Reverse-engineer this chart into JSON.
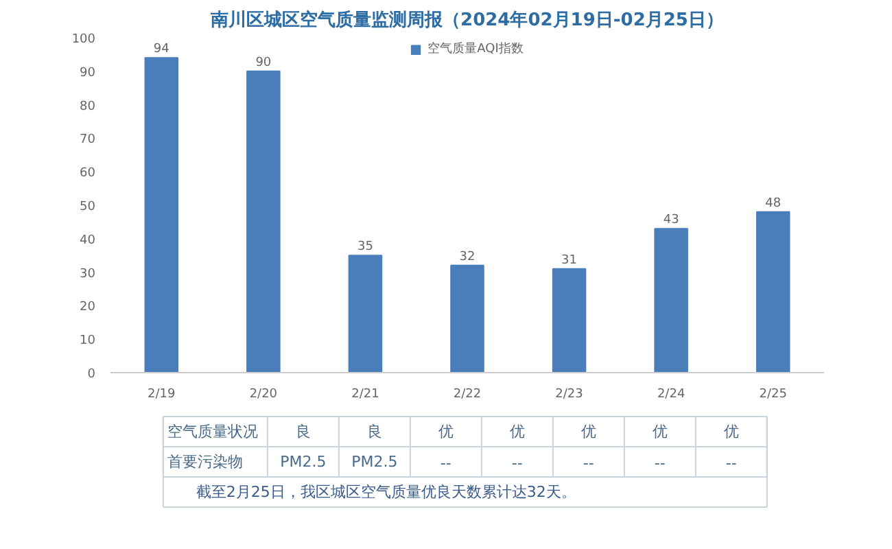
{
  "chart_data": {
    "type": "bar",
    "title": "南川区城区空气质量监测周报（2024年02月19日-02月25日）",
    "categories": [
      "2/19",
      "2/20",
      "2/21",
      "2/22",
      "2/23",
      "2/24",
      "2/25"
    ],
    "series": [
      {
        "name": "空气质量AQI指数",
        "color": "#4a7ebb",
        "values": [
          94,
          90,
          35,
          32,
          31,
          43,
          48
        ]
      }
    ],
    "ylim": [
      0,
      100
    ],
    "yticks": [
      0,
      10,
      20,
      30,
      40,
      50,
      60,
      70,
      80,
      90,
      100
    ],
    "data_labels": true,
    "legend": "top",
    "grid": false,
    "annotations": [
      "空气质量状况",
      "良",
      "良",
      "优",
      "优",
      "优",
      "优",
      "优",
      "首要污染物",
      "PM2.5",
      "PM2.5",
      "--",
      "--",
      "--",
      "--",
      "--",
      "截至2月25日，我区城区空气质量优良天数累计达32天。"
    ]
  }
}
